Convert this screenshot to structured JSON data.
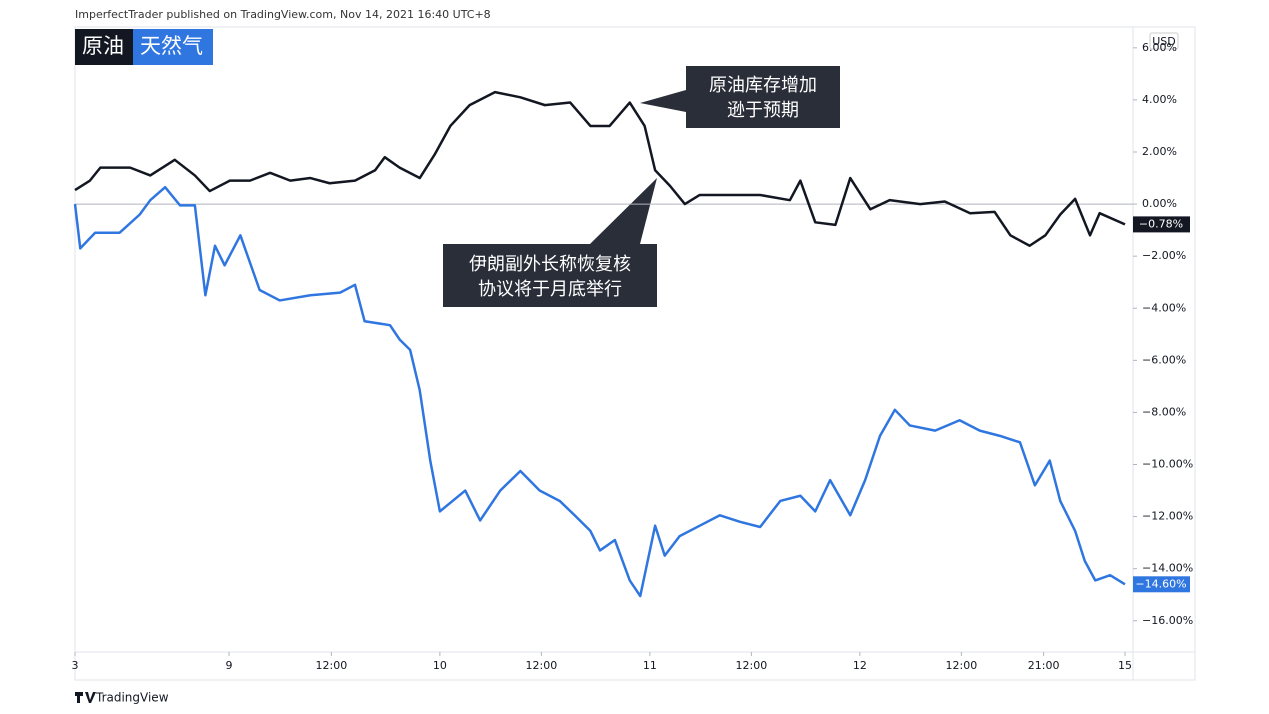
{
  "header": "ImperfectTrader published on TradingView.com, Nov 14, 2021 16:40 UTC+8",
  "footer": "TradingView",
  "currency": "USD",
  "chart_data": {
    "type": "line",
    "grid": false,
    "xlim": [
      0,
      120
    ],
    "xticks": [
      {
        "value": 0,
        "label": "3"
      },
      {
        "value": 17.6,
        "label": "9"
      },
      {
        "value": 29.3,
        "label": "12:00"
      },
      {
        "value": 41.7,
        "label": "10"
      },
      {
        "value": 53.3,
        "label": "12:00"
      },
      {
        "value": 65.7,
        "label": "11"
      },
      {
        "value": 77.3,
        "label": "12:00"
      },
      {
        "value": 89.7,
        "label": "12"
      },
      {
        "value": 101.3,
        "label": "12:00"
      },
      {
        "value": 110.7,
        "label": "21:00"
      },
      {
        "value": 120,
        "label": "15"
      }
    ],
    "ylim": [
      -17.2,
      6.8
    ],
    "yticks": [
      {
        "value": 6,
        "label": "6.00%"
      },
      {
        "value": 4,
        "label": "4.00%"
      },
      {
        "value": 2,
        "label": "2.00%"
      },
      {
        "value": 0,
        "label": "0.00%"
      },
      {
        "value": -2,
        "label": "−2.00%"
      },
      {
        "value": -4,
        "label": "−4.00%"
      },
      {
        "value": -6,
        "label": "−6.00%"
      },
      {
        "value": -8,
        "label": "−8.00%"
      },
      {
        "value": -10,
        "label": "−10.00%"
      },
      {
        "value": -12,
        "label": "−12.00%"
      },
      {
        "value": -14,
        "label": "−14.00%"
      },
      {
        "value": -16,
        "label": "−16.00%"
      }
    ],
    "series": [
      {
        "name": "原油",
        "color": "#131722",
        "value_label": "−0.78%",
        "x": [
          0,
          1.7,
          2.9,
          6.3,
          8.6,
          11.4,
          13.7,
          15.4,
          17.7,
          20,
          22.3,
          24.6,
          26.9,
          29.1,
          32,
          34.3,
          35.4,
          37.1,
          39.4,
          41.1,
          42.9,
          45.1,
          48,
          50.9,
          53.7,
          56.6,
          58.9,
          61.1,
          63.4,
          65.1,
          66.3,
          68,
          69.7,
          71.4,
          74.9,
          78.3,
          81.7,
          82.9,
          84.6,
          86.9,
          88.6,
          90.9,
          93.1,
          96.6,
          99.4,
          102.3,
          105.1,
          106.9,
          109.1,
          110.9,
          112.6,
          114.3,
          116,
          117.1,
          120
        ],
        "values": [
          0.54,
          0.9,
          1.4,
          1.4,
          1.1,
          1.7,
          1.1,
          0.5,
          0.9,
          0.9,
          1.2,
          0.9,
          1.0,
          0.8,
          0.9,
          1.3,
          1.8,
          1.4,
          1.0,
          1.9,
          3.0,
          3.8,
          4.3,
          4.1,
          3.8,
          3.9,
          3.0,
          3.0,
          3.9,
          3.0,
          1.3,
          0.7,
          0.0,
          0.35,
          0.35,
          0.35,
          0.15,
          0.9,
          -0.7,
          -0.8,
          1.0,
          -0.2,
          0.15,
          0.0,
          0.1,
          -0.35,
          -0.3,
          -1.2,
          -1.6,
          -1.2,
          -0.4,
          0.2,
          -1.2,
          -0.35,
          -0.78
        ]
      },
      {
        "name": "天然气",
        "color": "#2f76e0",
        "value_label": "−14.60%",
        "x": [
          0,
          0.6,
          2.3,
          5.1,
          7.4,
          8.6,
          10.3,
          12,
          13.7,
          14.9,
          16,
          17.1,
          18.9,
          21.1,
          23.4,
          26.9,
          30.3,
          32,
          33.1,
          36,
          37.1,
          38.3,
          39.4,
          40.6,
          41.7,
          44.6,
          46.3,
          48.6,
          50.9,
          53.1,
          55.4,
          57.1,
          58.9,
          60,
          61.7,
          63.4,
          64.6,
          66.3,
          67.4,
          69.1,
          71.4,
          73.7,
          76,
          78.3,
          80.6,
          82.9,
          84.6,
          86.3,
          88.6,
          90.3,
          92,
          93.7,
          95.4,
          98.3,
          101.1,
          103.4,
          105.7,
          108,
          109.7,
          111.4,
          112.6,
          114.3,
          115.4,
          116.6,
          118.3,
          120
        ],
        "values": [
          0,
          -1.7,
          -1.1,
          -1.1,
          -0.4,
          0.15,
          0.65,
          -0.05,
          -0.05,
          -3.5,
          -1.6,
          -2.35,
          -1.2,
          -3.3,
          -3.7,
          -3.5,
          -3.4,
          -3.1,
          -4.5,
          -4.65,
          -5.2,
          -5.6,
          -7.15,
          -9.85,
          -11.8,
          -11.0,
          -12.15,
          -11.0,
          -10.25,
          -11.0,
          -11.4,
          -11.95,
          -12.55,
          -13.3,
          -12.9,
          -14.45,
          -15.05,
          -12.35,
          -13.5,
          -12.75,
          -12.35,
          -11.95,
          -12.2,
          -12.4,
          -11.4,
          -11.2,
          -11.8,
          -10.6,
          -11.95,
          -10.6,
          -8.9,
          -7.9,
          -8.5,
          -8.7,
          -8.3,
          -8.7,
          -8.9,
          -9.15,
          -10.8,
          -9.85,
          -11.4,
          -12.55,
          -13.7,
          -14.45,
          -14.25,
          -14.6
        ]
      }
    ],
    "annotations": [
      {
        "lines": [
          "原油库存增加",
          "逊于预期"
        ]
      },
      {
        "lines": [
          "伊朗副外长称恢复核",
          "协议将于月底举行"
        ]
      }
    ]
  }
}
